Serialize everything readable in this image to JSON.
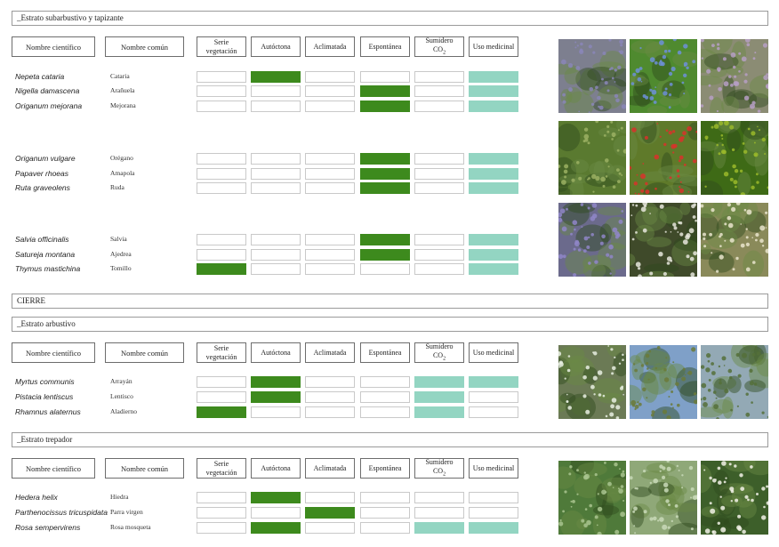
{
  "headers": {
    "scientific": "Nombre científico",
    "common": "Nombre común",
    "serie": "Serie vegetación",
    "autoctona": "Autóctona",
    "aclimatada": "Aclimatada",
    "espontanea": "Espontánea",
    "sumidero": "Sumidero CO",
    "sumidero_sub": "2",
    "medicinal": "Uso medicinal"
  },
  "colors": {
    "green": "#3d8a1d",
    "teal": "#93d5c2"
  },
  "sections": {
    "subarbustivo": "_Estrato subarbustivo y tapizante",
    "cierre": "CIERRE",
    "arbustivo": "_Estrato arbustivo",
    "trepador": "_Estrato trepador"
  },
  "plants": [
    {
      "sci": "Nepeta cataria",
      "common": "Cataria",
      "flags": [
        "",
        "green",
        "",
        "",
        "",
        "teal"
      ]
    },
    {
      "sci": "Nigella damascena",
      "common": "Arañuela",
      "flags": [
        "",
        "",
        "",
        "green",
        "",
        "teal"
      ]
    },
    {
      "sci": "Origanum mejorana",
      "common": "Mejorana",
      "flags": [
        "",
        "",
        "",
        "green",
        "",
        "teal"
      ]
    },
    {
      "sci": "Origanum vulgare",
      "common": "Orégano",
      "flags": [
        "",
        "",
        "",
        "green",
        "",
        "teal"
      ]
    },
    {
      "sci": "Papaver rhoeas",
      "common": "Amapola",
      "flags": [
        "",
        "",
        "",
        "green",
        "",
        "teal"
      ]
    },
    {
      "sci": "Ruta graveolens",
      "common": "Ruda",
      "flags": [
        "",
        "",
        "",
        "green",
        "",
        "teal"
      ]
    },
    {
      "sci": "Salvia officinalis",
      "common": "Salvia",
      "flags": [
        "",
        "",
        "",
        "green",
        "",
        "teal"
      ]
    },
    {
      "sci": "Satureja montana",
      "common": "Ajedrea",
      "flags": [
        "",
        "",
        "",
        "green",
        "",
        "teal"
      ]
    },
    {
      "sci": "Thymus mastichina",
      "common": "Tomillo",
      "flags": [
        "green",
        "",
        "",
        "",
        "",
        "teal"
      ]
    },
    {
      "sci": "Myrtus communis",
      "common": "Arrayán",
      "flags": [
        "",
        "green",
        "",
        "",
        "teal",
        "teal"
      ]
    },
    {
      "sci": "Pistacia lentiscus",
      "common": "Lentisco",
      "flags": [
        "",
        "green",
        "",
        "",
        "teal",
        ""
      ]
    },
    {
      "sci": "Rhamnus alaternus",
      "common": "Aladierno",
      "flags": [
        "green",
        "",
        "",
        "",
        "teal",
        ""
      ]
    },
    {
      "sci": "Hedera helix",
      "common": "Hiedra",
      "flags": [
        "",
        "green",
        "",
        "",
        "",
        ""
      ]
    },
    {
      "sci": "Parthenocissus tricuspidata",
      "common": "Parra virgen",
      "flags": [
        "",
        "",
        "green",
        "",
        "",
        ""
      ]
    },
    {
      "sci": "Rosa sempervirens",
      "common": "Rosa mosqueta",
      "flags": [
        "",
        "green",
        "",
        "",
        "teal",
        "teal"
      ]
    }
  ],
  "photos": [
    {
      "icon": "catmint-photo",
      "bg": "#7d7f8f",
      "fg": "#8a86b8"
    },
    {
      "icon": "nigella-photo",
      "bg": "#4f8a2f",
      "fg": "#6d8fd8"
    },
    {
      "icon": "marjoram-photo",
      "bg": "#8b8c74",
      "fg": "#b69fc4"
    },
    {
      "icon": "oregano-photo",
      "bg": "#5a7a30",
      "fg": "#9bb063"
    },
    {
      "icon": "poppy-photo",
      "bg": "#5f7a2a",
      "fg": "#d8322a"
    },
    {
      "icon": "rue-photo",
      "bg": "#3e6a16",
      "fg": "#9ab82a"
    },
    {
      "icon": "sage-photo",
      "bg": "#6b6a8c",
      "fg": "#8f86c8"
    },
    {
      "icon": "savory-photo",
      "bg": "#3f4a2a",
      "fg": "#e6e6dc"
    },
    {
      "icon": "thyme-photo",
      "bg": "#8a8a5a",
      "fg": "#e9e4cc"
    },
    {
      "icon": "myrtle-photo",
      "bg": "#6b7a55",
      "fg": "#e8efe2"
    },
    {
      "icon": "lentisk-photo",
      "bg": "#7fa0c8",
      "fg": "#6b7a3a"
    },
    {
      "icon": "alaternus-photo",
      "bg": "#93a9b5",
      "fg": "#55703a"
    },
    {
      "icon": "ivy-photo",
      "bg": "#4f7a3a",
      "fg": "#a9c48f"
    },
    {
      "icon": "virginia-creeper-photo",
      "bg": "#8fa878",
      "fg": "#c9d9b8"
    },
    {
      "icon": "rose-photo",
      "bg": "#3d5f2a",
      "fg": "#f2f2e8"
    }
  ]
}
